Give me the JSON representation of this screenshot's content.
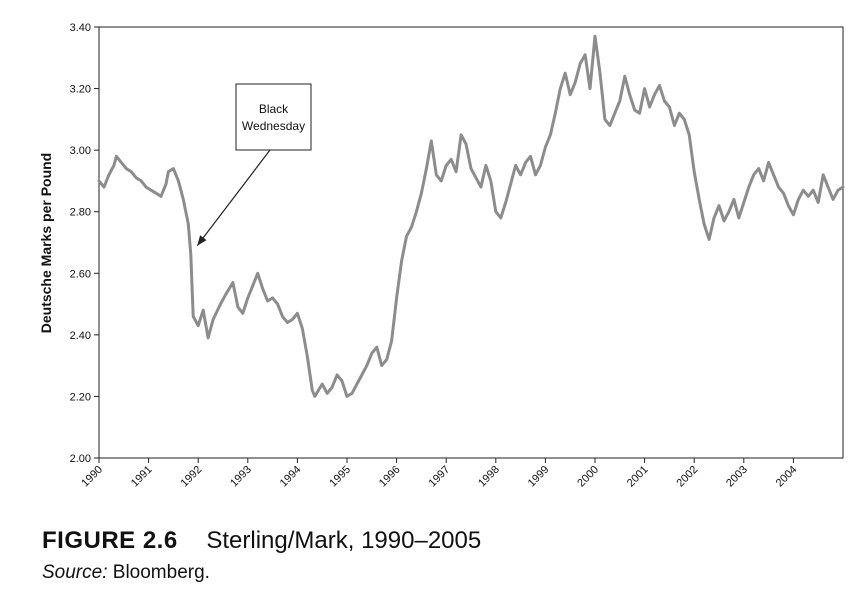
{
  "chart_data": {
    "type": "line",
    "title": "",
    "xlabel": "",
    "ylabel": "Deutsche Marks per Pound",
    "xlim": [
      1990,
      2005
    ],
    "ylim": [
      2.0,
      3.4
    ],
    "y_ticks": [
      "2.00",
      "2.20",
      "2.40",
      "2.60",
      "2.80",
      "3.00",
      "3.20",
      "3.40"
    ],
    "x_ticks": [
      "1990",
      "1991",
      "1992",
      "1993",
      "1994",
      "1995",
      "1996",
      "1997",
      "1998",
      "1999",
      "2000",
      "2001",
      "2002",
      "2003",
      "2004"
    ],
    "grid": false,
    "legend": "none",
    "line_color": "#8c8c8c",
    "series": [
      {
        "x": [
          1990.0,
          1990.1,
          1990.2,
          1990.3,
          1990.35,
          1990.45,
          1990.55,
          1990.65,
          1990.75,
          1990.85,
          1990.95,
          1991.05,
          1991.15,
          1991.25,
          1991.35,
          1991.4,
          1991.5,
          1991.6,
          1991.7,
          1991.8,
          1991.85,
          1991.9,
          1992.0,
          1992.1,
          1992.2,
          1992.3,
          1992.45,
          1992.55,
          1992.7,
          1992.8,
          1992.9,
          1993.0,
          1993.1,
          1993.2,
          1993.3,
          1993.4,
          1993.5,
          1993.6,
          1993.7,
          1993.8,
          1993.9,
          1994.0,
          1994.1,
          1994.2,
          1994.3,
          1994.35,
          1994.5,
          1994.6,
          1994.7,
          1994.8,
          1994.9,
          1995.0,
          1995.1,
          1995.2,
          1995.3,
          1995.4,
          1995.5,
          1995.6,
          1995.7,
          1995.8,
          1995.9,
          1996.0,
          1996.1,
          1996.2,
          1996.3,
          1996.4,
          1996.5,
          1996.6,
          1996.7,
          1996.8,
          1996.9,
          1997.0,
          1997.1,
          1997.2,
          1997.3,
          1997.4,
          1997.5,
          1997.6,
          1997.7,
          1997.8,
          1997.9,
          1998.0,
          1998.1,
          1998.2,
          1998.3,
          1998.4,
          1998.5,
          1998.6,
          1998.7,
          1998.8,
          1998.9,
          1999.0,
          1999.1,
          1999.2,
          1999.3,
          1999.4,
          1999.5,
          1999.6,
          1999.7,
          1999.8,
          1999.9,
          2000.0,
          2000.1,
          2000.2,
          2000.3,
          2000.4,
          2000.5,
          2000.6,
          2000.7,
          2000.8,
          2000.9,
          2001.0,
          2001.1,
          2001.2,
          2001.3,
          2001.4,
          2001.5,
          2001.6,
          2001.7,
          2001.8,
          2001.9,
          2002.0,
          2002.1,
          2002.2,
          2002.3,
          2002.4,
          2002.5,
          2002.6,
          2002.7,
          2002.8,
          2002.9,
          2003.0,
          2003.1,
          2003.2,
          2003.3,
          2003.4,
          2003.5,
          2003.6,
          2003.7,
          2003.8,
          2003.9,
          2004.0,
          2004.1,
          2004.2,
          2004.3,
          2004.4,
          2004.5,
          2004.6,
          2004.7,
          2004.8,
          2004.9,
          2005.0
        ],
        "values": [
          2.9,
          2.88,
          2.92,
          2.95,
          2.98,
          2.96,
          2.94,
          2.93,
          2.91,
          2.9,
          2.88,
          2.87,
          2.86,
          2.85,
          2.89,
          2.93,
          2.94,
          2.9,
          2.84,
          2.76,
          2.66,
          2.46,
          2.43,
          2.48,
          2.39,
          2.45,
          2.5,
          2.53,
          2.57,
          2.49,
          2.47,
          2.52,
          2.56,
          2.6,
          2.55,
          2.51,
          2.52,
          2.5,
          2.46,
          2.44,
          2.45,
          2.47,
          2.42,
          2.33,
          2.22,
          2.2,
          2.24,
          2.21,
          2.23,
          2.27,
          2.25,
          2.2,
          2.21,
          2.24,
          2.27,
          2.3,
          2.34,
          2.36,
          2.3,
          2.32,
          2.38,
          2.52,
          2.64,
          2.72,
          2.75,
          2.8,
          2.86,
          2.94,
          3.03,
          2.92,
          2.9,
          2.95,
          2.97,
          2.93,
          3.05,
          3.02,
          2.94,
          2.91,
          2.88,
          2.95,
          2.9,
          2.8,
          2.78,
          2.83,
          2.89,
          2.95,
          2.92,
          2.96,
          2.98,
          2.92,
          2.95,
          3.01,
          3.05,
          3.12,
          3.2,
          3.25,
          3.18,
          3.22,
          3.28,
          3.31,
          3.2,
          3.37,
          3.25,
          3.1,
          3.08,
          3.12,
          3.16,
          3.24,
          3.18,
          3.13,
          3.12,
          3.2,
          3.14,
          3.18,
          3.21,
          3.16,
          3.14,
          3.08,
          3.12,
          3.1,
          3.05,
          2.93,
          2.84,
          2.76,
          2.71,
          2.78,
          2.82,
          2.77,
          2.8,
          2.84,
          2.78,
          2.83,
          2.88,
          2.92,
          2.94,
          2.9,
          2.96,
          2.92,
          2.88,
          2.86,
          2.82,
          2.79,
          2.84,
          2.87,
          2.85,
          2.87,
          2.83,
          2.92,
          2.88,
          2.84,
          2.87,
          2.88
        ]
      }
    ],
    "annotations": [
      {
        "text": [
          "Black",
          "Wednesday"
        ],
        "points_to": {
          "x": 1991.9,
          "y": 2.68
        }
      }
    ]
  },
  "caption": {
    "figure_label": "FIGURE 2.6",
    "figure_title": "Sterling/Mark, 1990–2005",
    "source_label": "Source:",
    "source_value": "Bloomberg."
  }
}
